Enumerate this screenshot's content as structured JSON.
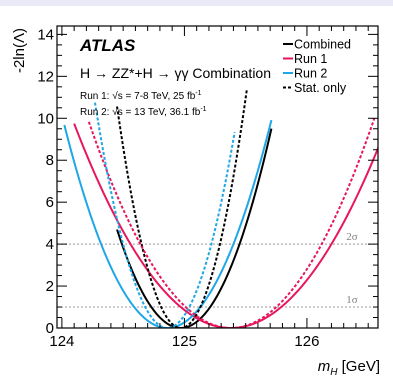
{
  "chart_data": {
    "type": "line",
    "title": "",
    "xlabel_var": "m",
    "xlabel_sub": "H",
    "xlabel_unit": " [GeV]",
    "ylabel": "-2ln(Λ)",
    "xlim": [
      123.96,
      126.58
    ],
    "ylim": [
      0,
      14.4
    ],
    "x_ticks": [
      124,
      125,
      126
    ],
    "x_tick_labels": [
      "124",
      "125",
      "126"
    ],
    "y_ticks": [
      0,
      2,
      4,
      6,
      8,
      10,
      12,
      14
    ],
    "y_tick_labels": [
      "0",
      "2",
      "4",
      "6",
      "8",
      "10",
      "12",
      "14"
    ],
    "grid": false,
    "legend_position": "top-right",
    "experiment": "ATLAS",
    "process_text": "H → ZZ*+H → γγ Combination",
    "run1_text": "Run 1: √s = 7-8 TeV, 25 fb",
    "run2_text": "Run 2: √s = 13 TeV, 36.1 fb",
    "lumi_exp": "-1",
    "reference_lines": [
      {
        "y": 1,
        "label": "1σ"
      },
      {
        "y": 4,
        "label": "2σ"
      }
    ],
    "series": [
      {
        "name": "Combined",
        "style": "solid",
        "color": "#000000",
        "min_x": 124.97,
        "sigma": 0.24,
        "x_range": [
          124.45,
          125.71
        ]
      },
      {
        "name": "Run 1",
        "style": "solid",
        "color": "#e8175d",
        "min_x": 125.38,
        "sigma": 0.41,
        "x_range": [
          124.1,
          126.6
        ]
      },
      {
        "name": "Run 2",
        "style": "solid",
        "color": "#1ea7e8",
        "min_x": 124.86,
        "sigma": 0.27,
        "x_range": [
          124.02,
          125.71
        ]
      },
      {
        "style": "dotted",
        "color": "#000000",
        "min_x": 124.97,
        "sigma": 0.16,
        "x_range": [
          124.45,
          125.51
        ]
      },
      {
        "style": "dotted",
        "color": "#e8175d",
        "min_x": 125.38,
        "sigma": 0.37,
        "x_range": [
          124.22,
          126.55
        ]
      },
      {
        "style": "dotted",
        "color": "#1ea7e8",
        "min_x": 124.86,
        "sigma": 0.18,
        "x_range": [
          124.27,
          125.41
        ]
      }
    ],
    "legend": [
      {
        "label": "Combined",
        "style": "solid",
        "color": "#000000"
      },
      {
        "label": "Run 1",
        "style": "solid",
        "color": "#e8175d"
      },
      {
        "label": "Run 2",
        "style": "solid",
        "color": "#1ea7e8"
      },
      {
        "label": "Stat. only",
        "style": "dotted",
        "color": "#000000"
      }
    ]
  }
}
